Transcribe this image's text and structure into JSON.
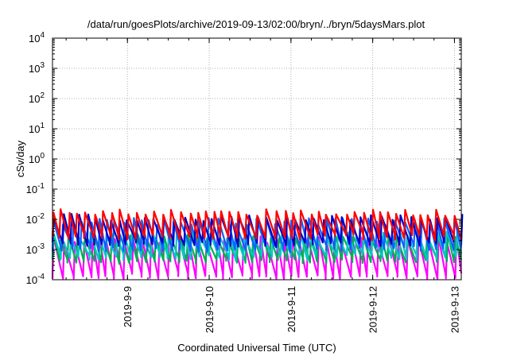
{
  "chart_data": {
    "type": "line",
    "title": "/data/run/goesPlots/archive/2019-09-13/02:00/bryn/../bryn/5daysMars.plot",
    "xlabel": "Coordinated Universal Time (UTC)",
    "ylabel": "cSv/day",
    "y_scale": "log",
    "ylim": [
      0.0001,
      10000
    ],
    "y_ticks": [
      {
        "value": 0.0001,
        "base": "10",
        "exp": "-4"
      },
      {
        "value": 0.001,
        "base": "10",
        "exp": "-3"
      },
      {
        "value": 0.01,
        "base": "10",
        "exp": "-2"
      },
      {
        "value": 0.1,
        "base": "10",
        "exp": "-1"
      },
      {
        "value": 1,
        "base": "10",
        "exp": "0"
      },
      {
        "value": 10,
        "base": "10",
        "exp": "1"
      },
      {
        "value": 100,
        "base": "10",
        "exp": "2"
      },
      {
        "value": 1000,
        "base": "10",
        "exp": "3"
      },
      {
        "value": 10000,
        "base": "10",
        "exp": "4"
      }
    ],
    "xlim": [
      "2019-09-08T02:00",
      "2019-09-13T02:00"
    ],
    "x_ticks": [
      {
        "value": "2019-09-09T00:00",
        "label": "2019-9-9"
      },
      {
        "value": "2019-09-10T00:00",
        "label": "2019-9-10"
      },
      {
        "value": "2019-09-11T00:00",
        "label": "2019-9-11"
      },
      {
        "value": "2019-09-12T00:00",
        "label": "2019-9-12"
      },
      {
        "value": "2019-09-13T00:00",
        "label": "2019-9-13"
      }
    ],
    "grid": true,
    "sawtooth_period_hours": 2.6,
    "series": [
      {
        "color": "#ff00ff",
        "peak": 0.0021,
        "trough": 0.00013
      },
      {
        "color": "#00b050",
        "peak": 0.0026,
        "trough": 0.00042
      },
      {
        "color": "#00c8c8",
        "peak": 0.0031,
        "trough": 0.00055
      },
      {
        "color": "#1060ff",
        "peak": 0.0085,
        "trough": 0.0011
      },
      {
        "color": "#0000c8",
        "peak": 0.0115,
        "trough": 0.0016
      },
      {
        "color": "#ff0000",
        "peak": 0.017,
        "trough": 0.0026
      }
    ]
  }
}
